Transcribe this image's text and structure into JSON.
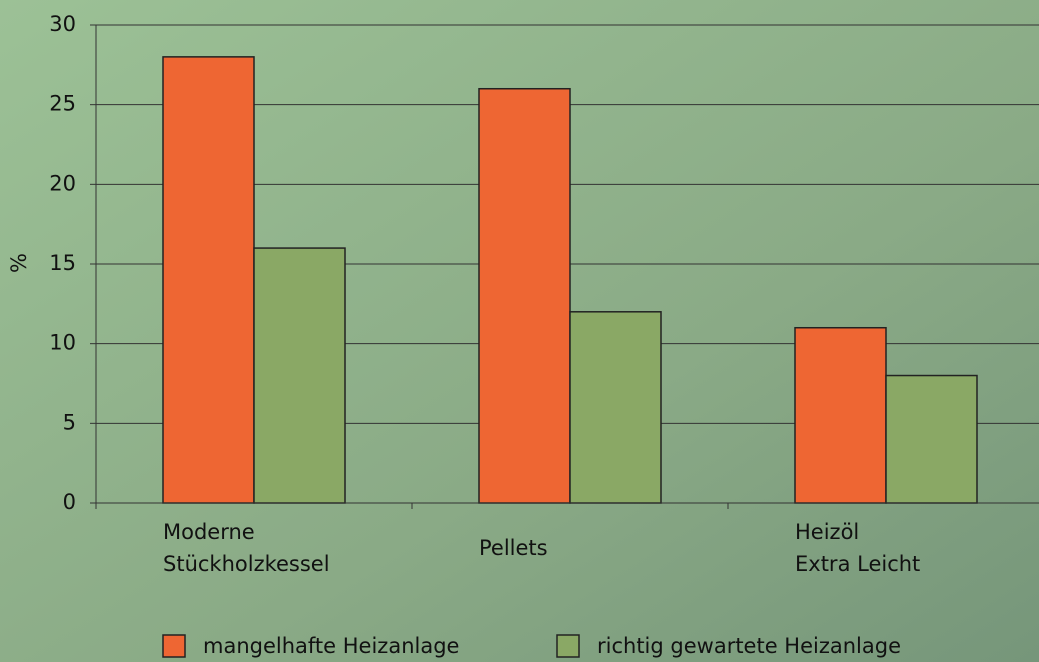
{
  "chart_data": {
    "type": "bar",
    "y_label": "%",
    "categories": [
      [
        "Moderne",
        "Stückholzkessel"
      ],
      [
        "Pellets"
      ],
      [
        "Heizöl",
        "Extra Leicht"
      ]
    ],
    "series": [
      {
        "name": "mangelhafte Heizanlage",
        "color": "#ee6633",
        "values": [
          28,
          26,
          11
        ]
      },
      {
        "name": "richtig gewartete Heizanlage",
        "color": "#8aa865",
        "values": [
          16,
          12,
          8
        ]
      }
    ],
    "ylim": [
      0,
      30
    ],
    "yticks": [
      0,
      5,
      10,
      15,
      20,
      25,
      30
    ],
    "grid": true
  }
}
